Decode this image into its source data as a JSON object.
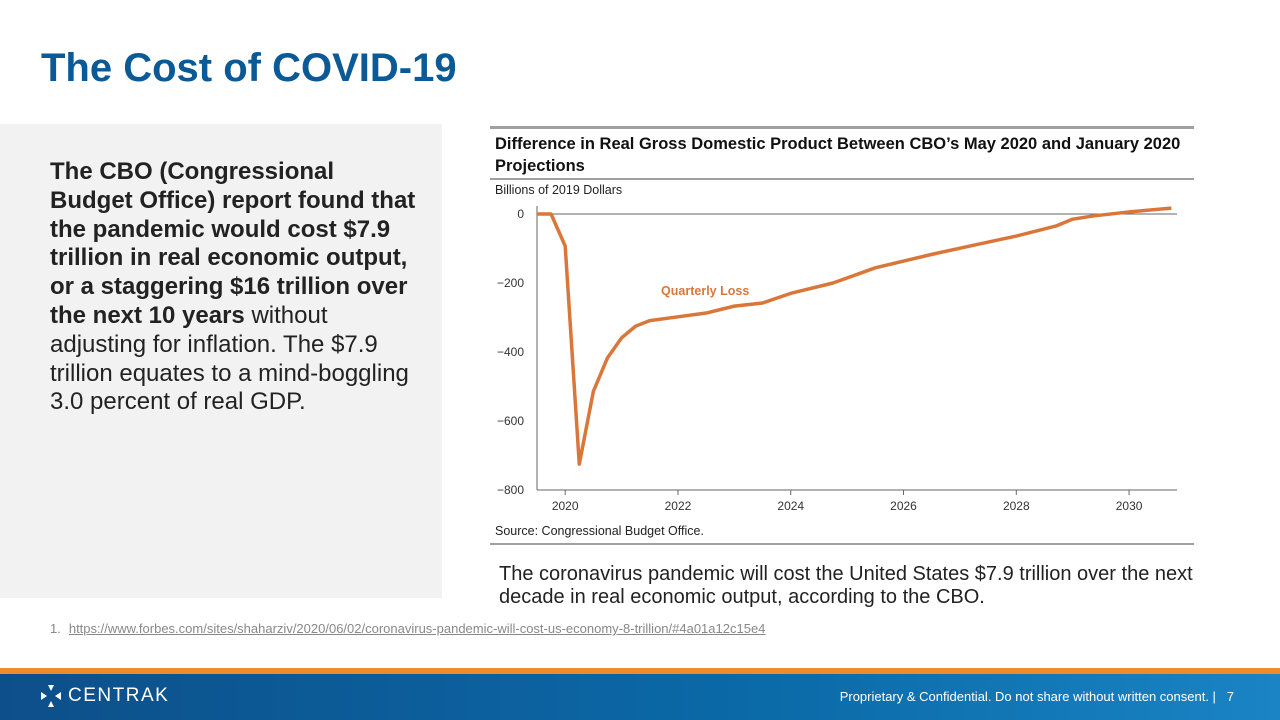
{
  "slide": {
    "title": "The Cost of COVID-19",
    "page_number": "7"
  },
  "left": {
    "bold_text": "The CBO (Congressional Budget Office) report found that the pandemic would cost $7.9 trillion in real economic output, or a staggering $16 trillion over the next 10 years",
    "normal_text": " without adjusting for inflation. The $7.9 trillion equates to a mind-boggling 3.0 percent of real GDP."
  },
  "caption": "The coronavirus pandemic will cost the United States $7.9 trillion over the next decade in real economic output, according to the CBO.",
  "footnote": {
    "number": "1.",
    "url": "https://www.forbes.com/sites/shaharziv/2020/06/02/coronavirus-pandemic-will-cost-us-economy-8-trillion/#4a01a12c15e4"
  },
  "footer": {
    "brand": "CENTRAK",
    "confidential": "Proprietary & Confidential. Do not share without written consent. |"
  },
  "chart_data": {
    "type": "line",
    "title": "Difference in Real Gross Domestic Product Between CBO’s May 2020 and January 2020 Projections",
    "ylabel": "Billions of 2019 Dollars",
    "source": "Source: Congressional Budget Office.",
    "xlim": [
      2019.5,
      2030.85
    ],
    "ylim": [
      -800,
      0
    ],
    "xticks": [
      2020,
      2022,
      2024,
      2026,
      2028,
      2030
    ],
    "yticks": [
      {
        "v": 0,
        "label": "0"
      },
      {
        "v": -200,
        "label": "−200"
      },
      {
        "v": -400,
        "label": "−400"
      },
      {
        "v": -600,
        "label": "−600"
      },
      {
        "v": -800,
        "label": "−800"
      }
    ],
    "color": "#d9773a",
    "series": [
      {
        "name": "Quarterly Loss",
        "points": [
          [
            2019.5,
            0
          ],
          [
            2019.75,
            0
          ],
          [
            2020.0,
            -93
          ],
          [
            2020.25,
            -725
          ],
          [
            2020.5,
            -514
          ],
          [
            2020.75,
            -417
          ],
          [
            2021.0,
            -359
          ],
          [
            2021.25,
            -325
          ],
          [
            2021.5,
            -309
          ],
          [
            2022.0,
            -298
          ],
          [
            2022.5,
            -287
          ],
          [
            2023.0,
            -267
          ],
          [
            2023.5,
            -258
          ],
          [
            2024.0,
            -230
          ],
          [
            2024.75,
            -200
          ],
          [
            2025.5,
            -156
          ],
          [
            2026.5,
            -117
          ],
          [
            2027.4,
            -85
          ],
          [
            2028.0,
            -64
          ],
          [
            2028.7,
            -35
          ],
          [
            2029.0,
            -15
          ],
          [
            2029.35,
            -6
          ],
          [
            2030.0,
            6
          ],
          [
            2030.75,
            17
          ]
        ]
      }
    ]
  }
}
